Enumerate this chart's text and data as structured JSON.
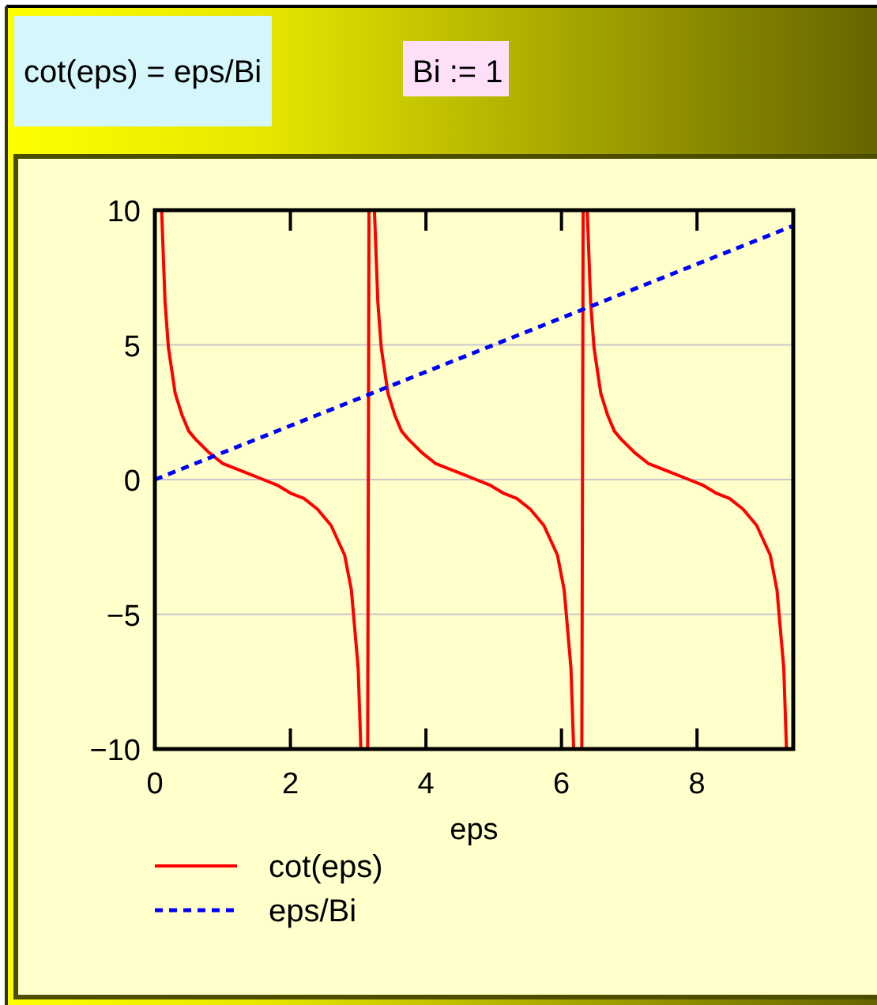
{
  "chart_data": {
    "type": "line",
    "title": "cot(eps) = eps/Bi",
    "subtitle": "Bi := 1",
    "xlabel": "eps",
    "xlim": [
      0,
      9.42
    ],
    "ylim": [
      -10,
      10
    ],
    "xticks": [
      0,
      2,
      4,
      6,
      8
    ],
    "yticks": [
      {
        "value": -10,
        "label": "−10"
      },
      {
        "value": -5,
        "label": "−5"
      },
      0,
      5,
      10
    ],
    "grid": "y",
    "legend": "bottom",
    "series": [
      {
        "name": "cot(eps)",
        "color": "#ff0000",
        "line_style": "solid",
        "x": [
          0.1,
          0.15,
          0.2,
          0.3,
          0.4,
          0.5,
          0.6,
          0.8,
          1.0,
          1.2,
          1.4,
          1.6,
          1.8,
          2.0,
          2.2,
          2.4,
          2.6,
          2.8,
          2.9,
          3.0,
          3.04,
          3.1,
          3.14,
          3.16,
          3.2,
          3.24,
          3.29,
          3.34,
          3.44,
          3.54,
          3.64,
          3.74,
          3.94,
          4.14,
          4.34,
          4.54,
          4.74,
          4.94,
          5.14,
          5.34,
          5.54,
          5.74,
          5.94,
          6.04,
          6.14,
          6.18,
          6.24,
          6.3,
          6.32,
          6.36,
          6.38,
          6.43,
          6.48,
          6.58,
          6.68,
          6.78,
          6.88,
          7.08,
          7.28,
          7.48,
          7.68,
          7.88,
          8.08,
          8.28,
          8.48,
          8.68,
          8.88,
          9.08,
          9.18,
          9.28,
          9.32
        ],
        "values": [
          10,
          6.6,
          4.9,
          3.2,
          2.4,
          1.8,
          1.5,
          1.0,
          0.6,
          0.4,
          0.2,
          0.0,
          -0.2,
          -0.5,
          -0.7,
          -1.1,
          -1.7,
          -2.8,
          -4.1,
          -7.0,
          -10,
          null,
          -10,
          10,
          null,
          10,
          6.6,
          4.9,
          3.2,
          2.4,
          1.8,
          1.5,
          1.0,
          0.6,
          0.4,
          0.2,
          0.0,
          -0.2,
          -0.5,
          -0.7,
          -1.1,
          -1.7,
          -2.8,
          -4.1,
          -7.0,
          -10,
          null,
          -10,
          10,
          null,
          10,
          6.6,
          4.9,
          3.2,
          2.4,
          1.8,
          1.5,
          1.0,
          0.6,
          0.4,
          0.2,
          0.0,
          -0.2,
          -0.5,
          -0.7,
          -1.1,
          -1.7,
          -2.8,
          -4.1,
          -7.0,
          -10
        ]
      },
      {
        "name": "eps/Bi",
        "color": "#0000ff",
        "line_style": "dashed",
        "x": [
          0,
          9.42
        ],
        "values": [
          0,
          9.42
        ]
      }
    ]
  }
}
